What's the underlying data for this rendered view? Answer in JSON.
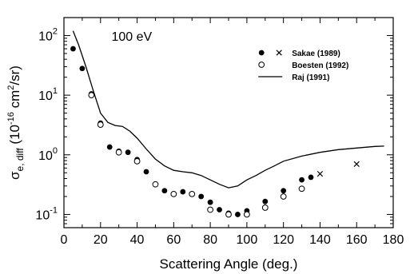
{
  "chart_data": {
    "type": "scatter",
    "xlabel": "Scattering Angle (deg.)",
    "ylabel_parts": {
      "sigma": "σ",
      "sub": "e, diff",
      "unit_open": " (10",
      "unit_exp": "-16",
      "unit_mid": " cm",
      "unit_exp2": "2",
      "unit_close": "/sr)"
    },
    "xlim": [
      0,
      180
    ],
    "ylim": [
      0.06,
      200
    ],
    "yscale": "log",
    "x_ticks": [
      {
        "v": 0,
        "label": "0"
      },
      {
        "v": 20,
        "label": "20"
      },
      {
        "v": 40,
        "label": "40"
      },
      {
        "v": 60,
        "label": "60"
      },
      {
        "v": 80,
        "label": "80"
      },
      {
        "v": 100,
        "label": "100"
      },
      {
        "v": 120,
        "label": "120"
      },
      {
        "v": 140,
        "label": "140"
      },
      {
        "v": 160,
        "label": "160"
      },
      {
        "v": 180,
        "label": "180"
      }
    ],
    "y_ticks": [
      {
        "v": 0.1,
        "base": "10",
        "exp": "-1"
      },
      {
        "v": 1,
        "base": "10",
        "exp": "0"
      },
      {
        "v": 10,
        "base": "10",
        "exp": "1"
      },
      {
        "v": 100,
        "base": "10",
        "exp": "2"
      }
    ],
    "annotation": "100 eV",
    "legend_position": "top-right",
    "grid": false,
    "series": [
      {
        "name": "Sakae (1989)",
        "marker": "filled-circle",
        "points": [
          [
            5,
            60
          ],
          [
            10,
            28
          ],
          [
            15,
            10.5
          ],
          [
            20,
            3.4
          ],
          [
            25,
            1.35
          ],
          [
            30,
            1.15
          ],
          [
            35,
            1.1
          ],
          [
            40,
            0.83
          ],
          [
            45,
            0.52
          ],
          [
            55,
            0.25
          ],
          [
            60,
            0.22
          ],
          [
            65,
            0.24
          ],
          [
            70,
            0.22
          ],
          [
            75,
            0.2
          ],
          [
            80,
            0.16
          ],
          [
            85,
            0.12
          ],
          [
            90,
            0.105
          ],
          [
            95,
            0.1
          ],
          [
            100,
            0.115
          ],
          [
            110,
            0.165
          ],
          [
            120,
            0.25
          ],
          [
            130,
            0.38
          ],
          [
            135,
            0.42
          ]
        ]
      },
      {
        "name": "Sakae (1989)",
        "marker": "cross",
        "points": [
          [
            140,
            0.48
          ],
          [
            160,
            0.7
          ]
        ]
      },
      {
        "name": "Boesten (1992)",
        "marker": "open-circle",
        "points": [
          [
            15,
            10
          ],
          [
            20,
            3.2
          ],
          [
            30,
            1.1
          ],
          [
            40,
            0.78
          ],
          [
            50,
            0.32
          ],
          [
            60,
            0.22
          ],
          [
            70,
            0.22
          ],
          [
            80,
            0.12
          ],
          [
            90,
            0.1
          ],
          [
            100,
            0.1
          ],
          [
            110,
            0.13
          ],
          [
            120,
            0.2
          ],
          [
            130,
            0.27
          ]
        ]
      },
      {
        "name": "Raj (1991)",
        "marker": "line",
        "points": [
          [
            5,
            120
          ],
          [
            8,
            70
          ],
          [
            12,
            30
          ],
          [
            16,
            12
          ],
          [
            20,
            5
          ],
          [
            24,
            3.5
          ],
          [
            28,
            3.1
          ],
          [
            32,
            3.0
          ],
          [
            36,
            2.5
          ],
          [
            40,
            1.9
          ],
          [
            45,
            1.25
          ],
          [
            50,
            0.85
          ],
          [
            55,
            0.65
          ],
          [
            60,
            0.55
          ],
          [
            65,
            0.52
          ],
          [
            70,
            0.5
          ],
          [
            75,
            0.45
          ],
          [
            80,
            0.38
          ],
          [
            85,
            0.32
          ],
          [
            90,
            0.28
          ],
          [
            95,
            0.3
          ],
          [
            100,
            0.38
          ],
          [
            105,
            0.45
          ],
          [
            110,
            0.55
          ],
          [
            115,
            0.65
          ],
          [
            120,
            0.78
          ],
          [
            130,
            0.95
          ],
          [
            140,
            1.1
          ],
          [
            150,
            1.22
          ],
          [
            160,
            1.3
          ],
          [
            170,
            1.38
          ],
          [
            175,
            1.4
          ]
        ]
      }
    ],
    "legend": [
      {
        "label": "Sakae (1989)",
        "markers": [
          "filled-circle",
          "cross"
        ]
      },
      {
        "label": "Boesten (1992)",
        "markers": [
          "open-circle"
        ]
      },
      {
        "label": "Raj (1991)",
        "markers": [
          "line"
        ]
      }
    ]
  }
}
